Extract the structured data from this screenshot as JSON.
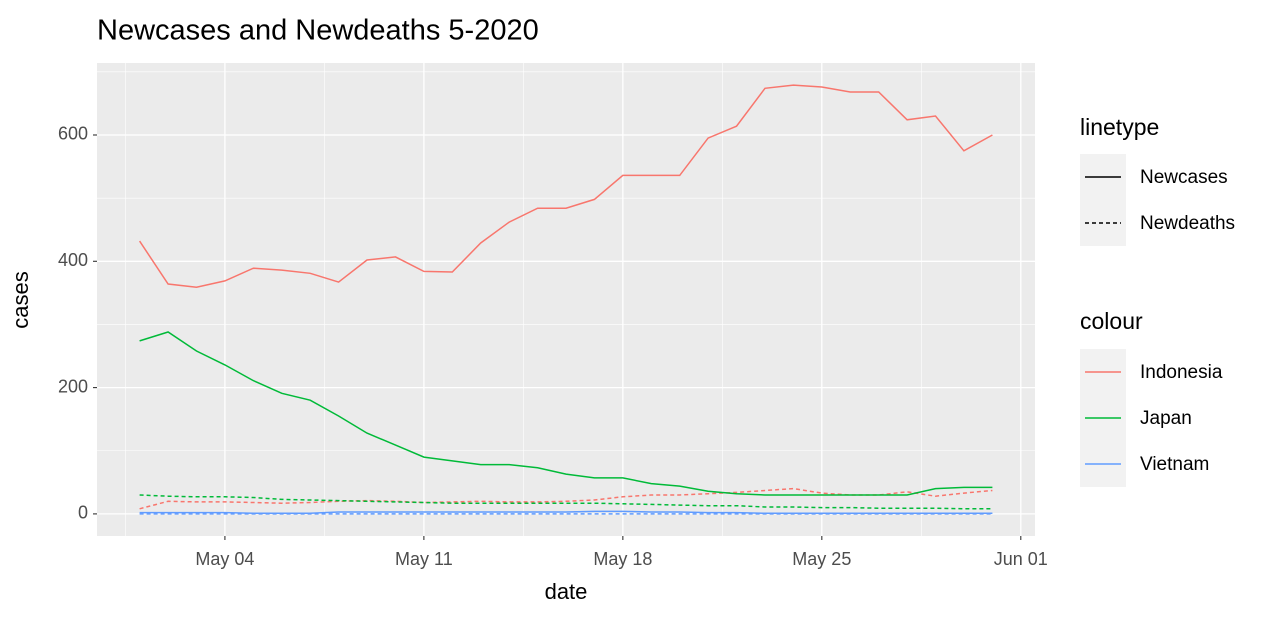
{
  "chart_data": {
    "type": "line",
    "title": "Newcases and Newdeaths 5-2020",
    "x_label": "date",
    "y_label": "cases",
    "x": [
      "May 01",
      "May 02",
      "May 03",
      "May 04",
      "May 05",
      "May 06",
      "May 07",
      "May 08",
      "May 09",
      "May 10",
      "May 11",
      "May 12",
      "May 13",
      "May 14",
      "May 15",
      "May 16",
      "May 17",
      "May 18",
      "May 19",
      "May 20",
      "May 21",
      "May 22",
      "May 23",
      "May 24",
      "May 25",
      "May 26",
      "May 27",
      "May 28",
      "May 29",
      "May 30",
      "May 31"
    ],
    "xticks": [
      "May 04",
      "May 11",
      "May 18",
      "May 25",
      "Jun 01"
    ],
    "ylim": [
      -35,
      714
    ],
    "yticks": [
      0,
      200,
      400,
      600
    ],
    "grid": true,
    "linetype_legend": {
      "title": "linetype",
      "items": [
        {
          "name": "Newcases",
          "dash": "solid"
        },
        {
          "name": "Newdeaths",
          "dash": "dotted"
        }
      ]
    },
    "colour_legend_title": "colour",
    "series": [
      {
        "name": "Indonesia",
        "color": "#F8766D",
        "values": [
          [
            432,
            364,
            359,
            369,
            389,
            386,
            381,
            367,
            402,
            407,
            384,
            383,
            429,
            462,
            484,
            484,
            498,
            536,
            536,
            536,
            595,
            614,
            674,
            679,
            676,
            668,
            668,
            624,
            630,
            575,
            600
          ],
          [
            8,
            20,
            19,
            19,
            18,
            17,
            18,
            20,
            21,
            20,
            18,
            19,
            20,
            19,
            19,
            20,
            22,
            27,
            30,
            30,
            32,
            34,
            37,
            40,
            33,
            30,
            30,
            35,
            28,
            33,
            37
          ]
        ]
      },
      {
        "name": "Japan",
        "color": "#00BA38",
        "values": [
          [
            274,
            288,
            258,
            236,
            211,
            191,
            180,
            155,
            128,
            109,
            90,
            84,
            78,
            78,
            73,
            63,
            57,
            57,
            48,
            44,
            36,
            32,
            30,
            30,
            30,
            30,
            30,
            30,
            40,
            42,
            42
          ],
          [
            30,
            28,
            27,
            27,
            26,
            23,
            22,
            21,
            20,
            19,
            18,
            17,
            17,
            17,
            17,
            17,
            17,
            16,
            15,
            14,
            13,
            13,
            11,
            11,
            10,
            10,
            9,
            9,
            9,
            8,
            8
          ]
        ]
      },
      {
        "name": "Vietnam",
        "color": "#619CFF",
        "values": [
          [
            2,
            2,
            2,
            2,
            1,
            1,
            1,
            3,
            3,
            3,
            3,
            3,
            3,
            3,
            3,
            3,
            4,
            4,
            3,
            3,
            2,
            2,
            1,
            1,
            1,
            1,
            1,
            1,
            1,
            1,
            1
          ],
          [
            0,
            0,
            0,
            0,
            0,
            0,
            0,
            0,
            0,
            0,
            0,
            0,
            0,
            0,
            0,
            0,
            0,
            0,
            0,
            0,
            0,
            0,
            0,
            0,
            0,
            0,
            0,
            0,
            0,
            0,
            0
          ]
        ]
      }
    ]
  }
}
